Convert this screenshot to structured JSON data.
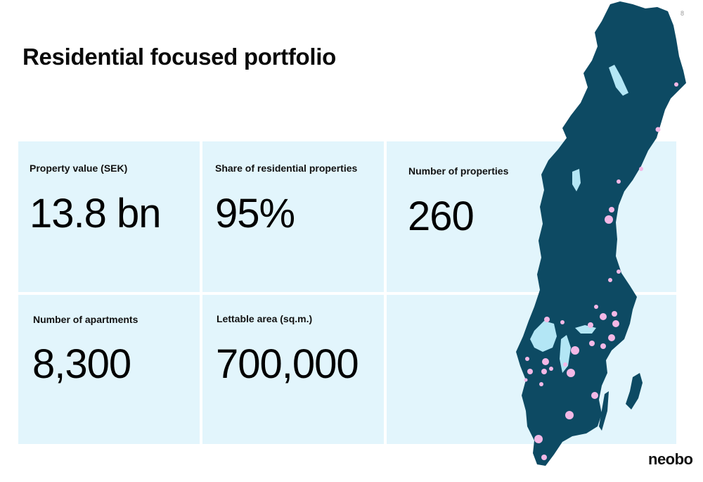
{
  "page_number": "8",
  "title": "Residential focused portfolio",
  "stats": [
    {
      "label": "Property value (SEK)",
      "value": "13.8 bn"
    },
    {
      "label": "Share of residential properties",
      "value": "95%"
    },
    {
      "label": "Number of properties",
      "value": "260"
    },
    {
      "label": "Number of apartments",
      "value": "8,300"
    },
    {
      "label": "Lettable area (sq.m.)",
      "value": "700,000"
    }
  ],
  "logo": "neobo",
  "colors": {
    "tile_background": "#e2f5fc",
    "map_land": "#0d4a63",
    "map_lakes": "#b3e6f5",
    "property_markers": "#f4b8e6"
  }
}
